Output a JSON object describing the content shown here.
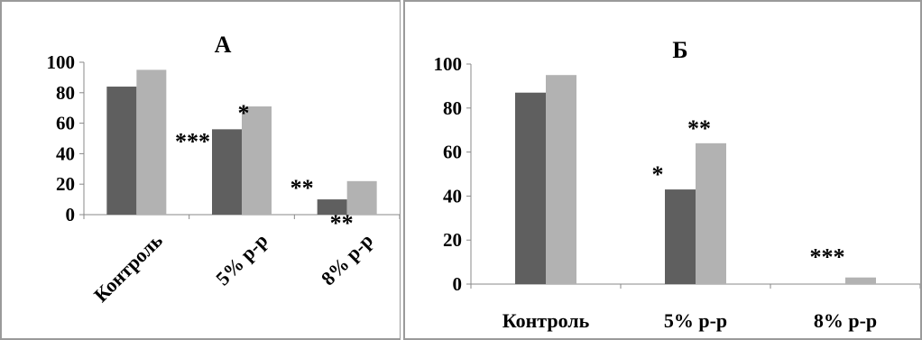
{
  "chart_data": [
    {
      "type": "bar",
      "title": "А",
      "categories": [
        "Контроль",
        "5% р-р",
        "8% р-р"
      ],
      "series": [
        {
          "values": [
            84,
            56,
            10
          ]
        },
        {
          "values": [
            95,
            71,
            22
          ]
        }
      ],
      "ylim": [
        0,
        100
      ],
      "yticks": [
        0,
        20,
        40,
        60,
        80,
        100
      ],
      "annotations": [
        {
          "text": "***",
          "category": 1,
          "series": 0
        },
        {
          "text": "*",
          "category": 1,
          "series": 1
        },
        {
          "text": "**",
          "category": 2,
          "series": 0
        },
        {
          "text": "**",
          "category": 2,
          "series": 1
        }
      ],
      "colors": [
        "#5f5f5f",
        "#b2b2b2"
      ],
      "grid": false
    },
    {
      "type": "bar",
      "title": "Б",
      "categories": [
        "Контроль",
        "5% р-р",
        "8% р-р"
      ],
      "series": [
        {
          "values": [
            87,
            43,
            0
          ]
        },
        {
          "values": [
            95,
            64,
            3
          ]
        }
      ],
      "ylim": [
        0,
        100
      ],
      "yticks": [
        0,
        20,
        40,
        60,
        80,
        100
      ],
      "annotations": [
        {
          "text": "*",
          "category": 1,
          "series": 0
        },
        {
          "text": "**",
          "category": 1,
          "series": 1
        },
        {
          "text": "***",
          "category": 2,
          "series": 1
        }
      ],
      "colors": [
        "#5f5f5f",
        "#b2b2b2"
      ],
      "grid": false
    }
  ]
}
